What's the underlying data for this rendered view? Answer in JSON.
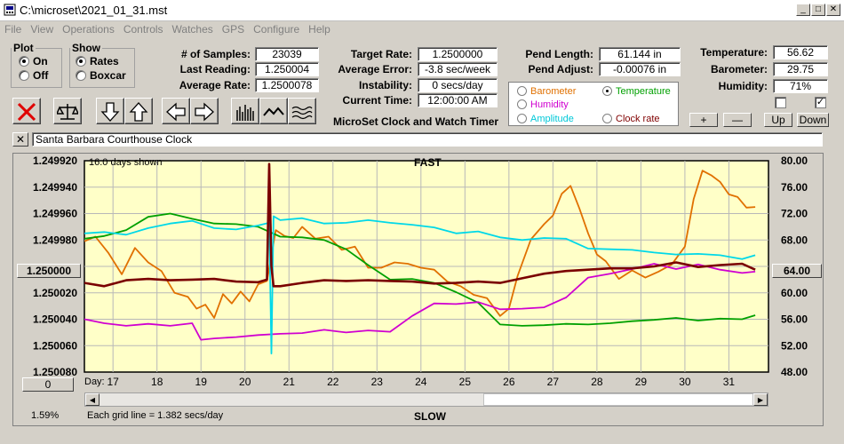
{
  "window": {
    "title": "C:\\microset\\2021_01_31.mst"
  },
  "menu": [
    "File",
    "View",
    "Operations",
    "Controls",
    "Watches",
    "GPS",
    "Configure",
    "Help"
  ],
  "plot_group": {
    "title": "Plot",
    "on": "On",
    "off": "Off",
    "selected": "On"
  },
  "show_group": {
    "title": "Show",
    "rates": "Rates",
    "boxcar": "Boxcar",
    "selected": "Rates"
  },
  "stats": {
    "samples_label": "# of Samples:",
    "samples": "23039",
    "last_label": "Last Reading:",
    "last": "1.250004",
    "avg_label": "Average Rate:",
    "avg": "1.2500078"
  },
  "rates": {
    "target_label": "Target Rate:",
    "target": "1.2500000",
    "avgerr_label": "Average Error:",
    "avgerr": "-3.8 sec/week",
    "instab_label": "Instability:",
    "instab": "0 secs/day",
    "time_label": "Current Time:",
    "time": "12:00:00 AM"
  },
  "pendulum": {
    "length_label": "Pend Length:",
    "length": "61.144 in",
    "adjust_label": "Pend Adjust:",
    "adjust": "-0.00076 in"
  },
  "environment": {
    "temp_label": "Temperature:",
    "temp": "56.62",
    "baro_label": "Barometer:",
    "baro": "29.75",
    "hum_label": "Humidity:",
    "hum": "71%",
    "checkbox_right": "✓"
  },
  "sensor_select": {
    "options": [
      "Barometer",
      "Temperature",
      "Humidity",
      "Amplitude",
      "Clock rate"
    ],
    "selected": "Temperature",
    "colors": {
      "Barometer": "#e07000",
      "Temperature": "#00a000",
      "Humidity": "#d000d0",
      "Amplitude": "#00c8d8",
      "Clock rate": "#800000"
    }
  },
  "app_caption": "MicroSet Clock and Watch Timer",
  "scale_buttons": {
    "plus": "+",
    "minus": "—",
    "up": "Up",
    "down": "Down"
  },
  "watch_name": "Santa Barbara Courthouse Clock",
  "close_x": "✕",
  "chart_header": {
    "days_shown": "16.0 days shown",
    "top": "FAST",
    "bottom": "SLOW"
  },
  "center_value_button": "1.250000",
  "right_value_button": "64.00",
  "zero_button": "0",
  "footer": {
    "percent": "1.59%",
    "grid_note": "Each grid line = 1.382 secs/day",
    "day_label": "Day:"
  },
  "chart_data": {
    "type": "line",
    "x_range": [
      16.35,
      31.9
    ],
    "x_ticks": [
      17,
      18,
      19,
      20,
      21,
      22,
      23,
      24,
      25,
      26,
      27,
      28,
      29,
      30,
      31
    ],
    "left_axis": {
      "ticks": [
        "1.249920",
        "1.249940",
        "1.249960",
        "1.249980",
        "1.250000",
        "1.250020",
        "1.250040",
        "1.250060",
        "1.250080"
      ],
      "range": [
        1.24992,
        1.25008
      ],
      "inverted": true
    },
    "right_axis": {
      "ticks": [
        "80.00",
        "76.00",
        "72.00",
        "68.00",
        "64.00",
        "60.00",
        "56.00",
        "52.00",
        "48.00"
      ],
      "range": [
        48,
        80
      ]
    },
    "grid": true,
    "series": [
      {
        "name": "Barometer",
        "color": "#e07000",
        "x": [
          16.35,
          16.6,
          16.9,
          17.2,
          17.5,
          17.8,
          18.1,
          18.4,
          18.7,
          18.9,
          19.1,
          19.3,
          19.5,
          19.7,
          19.9,
          20.1,
          20.3,
          20.5,
          20.7,
          20.9,
          21.1,
          21.3,
          21.6,
          21.9,
          22.2,
          22.5,
          22.8,
          23.1,
          23.4,
          23.7,
          24.0,
          24.3,
          24.6,
          24.9,
          25.2,
          25.5,
          25.8,
          26.0,
          26.2,
          26.5,
          26.8,
          27.0,
          27.2,
          27.4,
          27.6,
          27.8,
          28.0,
          28.2,
          28.5,
          28.8,
          29.1,
          29.4,
          29.7,
          30.0,
          30.2,
          30.4,
          30.6,
          30.8,
          31.0,
          31.2,
          31.4,
          31.6
        ],
        "y": [
          67.8,
          68.5,
          66.0,
          62.8,
          66.8,
          64.6,
          63.3,
          60.0,
          59.4,
          57.6,
          58.2,
          56.2,
          59.8,
          58.4,
          60.2,
          58.7,
          61.3,
          61.8,
          69.5,
          68.6,
          68.3,
          70.0,
          68.2,
          68.5,
          66.5,
          67.0,
          63.8,
          63.8,
          64.6,
          64.4,
          63.8,
          63.5,
          61.7,
          61.0,
          59.7,
          59.2,
          56.5,
          57.6,
          62.6,
          68.1,
          70.4,
          71.7,
          75.0,
          76.2,
          72.8,
          69.0,
          65.8,
          64.8,
          62.1,
          63.4,
          62.3,
          63.2,
          64.3,
          67.0,
          74.2,
          78.5,
          77.8,
          76.8,
          74.9,
          74.5,
          72.9,
          73.0
        ]
      },
      {
        "name": "Temperature",
        "color": "#00a000",
        "x": [
          16.35,
          16.8,
          17.3,
          17.8,
          18.3,
          18.8,
          19.3,
          19.8,
          20.3,
          20.8,
          21.3,
          21.8,
          22.3,
          22.8,
          23.3,
          23.8,
          24.3,
          24.8,
          25.3,
          25.8,
          26.3,
          26.8,
          27.3,
          27.8,
          28.3,
          28.8,
          29.3,
          29.8,
          30.3,
          30.8,
          31.3,
          31.6
        ],
        "y": [
          68.2,
          68.6,
          69.5,
          71.5,
          72.0,
          71.2,
          70.5,
          70.4,
          70.0,
          68.5,
          68.4,
          68.0,
          66.6,
          64.2,
          62.0,
          62.1,
          61.5,
          60.1,
          58.5,
          55.2,
          55.0,
          55.1,
          55.3,
          55.2,
          55.4,
          55.7,
          55.9,
          56.2,
          55.8,
          56.1,
          56.0,
          56.6
        ]
      },
      {
        "name": "Humidity",
        "color": "#d000d0",
        "x": [
          16.35,
          16.8,
          17.3,
          17.8,
          18.3,
          18.8,
          19.0,
          19.3,
          19.8,
          20.3,
          20.8,
          21.3,
          21.8,
          22.3,
          22.8,
          23.3,
          23.8,
          24.3,
          24.8,
          25.3,
          25.8,
          26.3,
          26.8,
          27.3,
          27.8,
          28.3,
          28.8,
          29.3,
          29.8,
          30.3,
          30.8,
          31.3,
          31.6
        ],
        "y": [
          56.0,
          55.4,
          55.0,
          55.3,
          55.0,
          55.4,
          52.9,
          53.1,
          53.3,
          53.6,
          53.8,
          53.9,
          54.4,
          54.0,
          54.3,
          54.1,
          56.5,
          58.4,
          58.3,
          58.6,
          57.5,
          57.6,
          57.8,
          59.3,
          62.3,
          62.9,
          63.6,
          64.4,
          63.6,
          64.3,
          63.5,
          63.0,
          63.2
        ]
      },
      {
        "name": "Amplitude",
        "color": "#00d8e8",
        "x": [
          16.35,
          16.8,
          17.3,
          17.8,
          18.3,
          18.8,
          19.3,
          19.8,
          20.3,
          20.55,
          20.6,
          20.65,
          20.8,
          21.3,
          21.8,
          22.3,
          22.8,
          23.3,
          23.8,
          24.3,
          24.8,
          25.3,
          25.8,
          26.3,
          26.8,
          27.3,
          27.8,
          28.3,
          28.8,
          29.3,
          29.8,
          30.3,
          30.8,
          31.3,
          31.6
        ],
        "y": [
          69.0,
          69.2,
          68.8,
          69.8,
          70.5,
          70.9,
          69.8,
          69.6,
          70.2,
          70.6,
          50.8,
          71.6,
          71.0,
          71.3,
          70.5,
          70.6,
          71.0,
          70.6,
          70.3,
          69.9,
          69.0,
          69.3,
          68.4,
          68.0,
          68.3,
          68.2,
          66.7,
          66.6,
          66.5,
          66.1,
          65.8,
          65.9,
          65.7,
          65.1,
          65.7
        ]
      },
      {
        "name": "Clock rate",
        "color": "#7a0000",
        "x": [
          16.35,
          16.8,
          17.3,
          17.8,
          18.3,
          18.8,
          19.3,
          19.8,
          20.3,
          20.5,
          20.55,
          20.6,
          20.65,
          20.8,
          21.3,
          21.8,
          22.3,
          22.8,
          23.3,
          23.8,
          24.3,
          24.8,
          25.3,
          25.8,
          26.3,
          26.8,
          27.3,
          27.8,
          28.3,
          28.8,
          29.3,
          29.8,
          30.3,
          30.8,
          31.3,
          31.6
        ],
        "y": [
          61.5,
          61.0,
          61.9,
          62.1,
          61.9,
          62.0,
          62.1,
          61.7,
          61.6,
          62.0,
          79.5,
          64.0,
          61.0,
          61.0,
          61.5,
          61.9,
          61.8,
          61.9,
          61.8,
          61.7,
          61.4,
          61.5,
          61.7,
          61.5,
          62.2,
          62.9,
          63.3,
          63.5,
          63.7,
          63.7,
          64.0,
          64.6,
          63.9,
          64.2,
          64.4,
          63.5
        ]
      }
    ]
  }
}
